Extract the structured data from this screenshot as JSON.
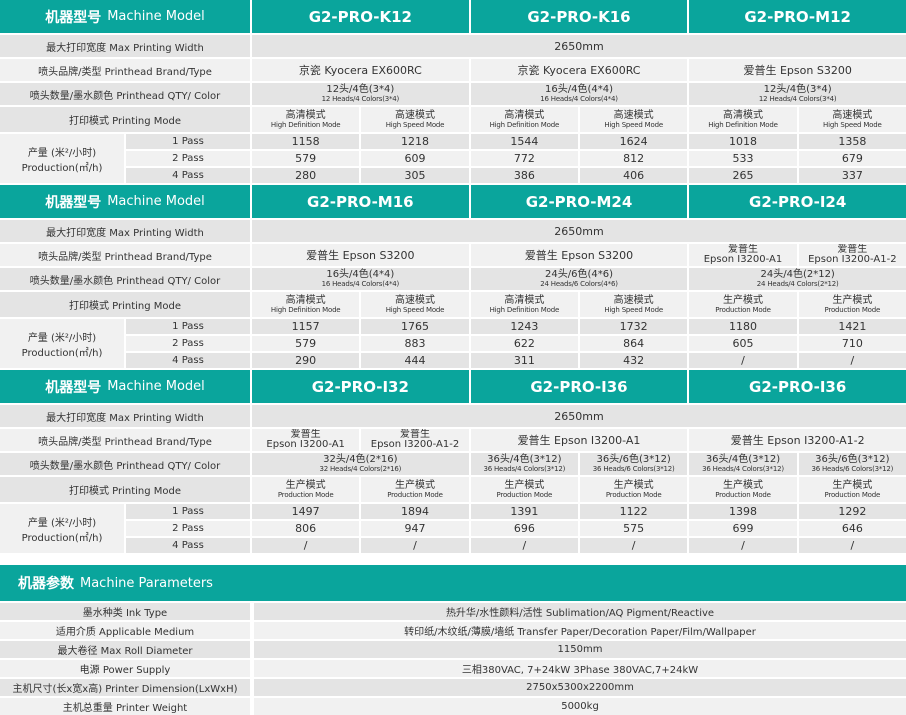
{
  "colors": {
    "accent": "#0aa59c",
    "row_dark": "#e4e4e4",
    "row_light": "#f1f1f1"
  },
  "labels": {
    "machine_model_zh": "机器型号",
    "machine_model_en": "Machine Model",
    "max_width": "最大打印宽度 Max Printing Width",
    "brand": "喷头品牌/类型 Printhead Brand/Type",
    "qty": "喷头数量/墨水颜色 Printhead QTY/ Color",
    "mode": "打印模式 Printing Mode",
    "production_zh": "产量 (米²/小时)",
    "production_en": "Production(㎡/h)",
    "passes": [
      "1  Pass",
      "2  Pass",
      "4  Pass"
    ]
  },
  "sections": [
    {
      "width": "2650mm",
      "models": [
        {
          "name": "G2-PRO-K12",
          "brand": [
            "京瓷 Kyocera EX600RC"
          ],
          "qty": [
            {
              "zh": "12头/4色(3*4)",
              "en": "12 Heads/4 Colors(3*4)"
            }
          ],
          "modes": [
            {
              "zh": "高清模式",
              "en": "High Definition Mode"
            },
            {
              "zh": "高速模式",
              "en": "High Speed Mode"
            }
          ],
          "values": [
            [
              "1158",
              "1218"
            ],
            [
              "579",
              "609"
            ],
            [
              "280",
              "305"
            ]
          ]
        },
        {
          "name": "G2-PRO-K16",
          "brand": [
            "京瓷 Kyocera EX600RC"
          ],
          "qty": [
            {
              "zh": "16头/4色(4*4)",
              "en": "16 Heads/4 Colors(4*4)"
            }
          ],
          "modes": [
            {
              "zh": "高清模式",
              "en": "High Definition Mode"
            },
            {
              "zh": "高速模式",
              "en": "High Speed Mode"
            }
          ],
          "values": [
            [
              "1544",
              "1624"
            ],
            [
              "772",
              "812"
            ],
            [
              "386",
              "406"
            ]
          ]
        },
        {
          "name": "G2-PRO-M12",
          "brand": [
            "爱普生 Epson S3200"
          ],
          "qty": [
            {
              "zh": "12头/4色(3*4)",
              "en": "12 Heads/4 Colors(3*4)"
            }
          ],
          "modes": [
            {
              "zh": "高清模式",
              "en": "High Definition Mode"
            },
            {
              "zh": "高速模式",
              "en": "High Speed Mode"
            }
          ],
          "values": [
            [
              "1018",
              "1358"
            ],
            [
              "533",
              "679"
            ],
            [
              "265",
              "337"
            ]
          ]
        }
      ]
    },
    {
      "width": "2650mm",
      "models": [
        {
          "name": "G2-PRO-M16",
          "brand": [
            "爱普生 Epson S3200"
          ],
          "qty": [
            {
              "zh": "16头/4色(4*4)",
              "en": "16 Heads/4 Colors(4*4)"
            }
          ],
          "modes": [
            {
              "zh": "高清模式",
              "en": "High Definition Mode"
            },
            {
              "zh": "高速模式",
              "en": "High Speed Mode"
            }
          ],
          "values": [
            [
              "1157",
              "1765"
            ],
            [
              "579",
              "883"
            ],
            [
              "290",
              "444"
            ]
          ]
        },
        {
          "name": "G2-PRO-M24",
          "brand": [
            "爱普生 Epson S3200"
          ],
          "qty": [
            {
              "zh": "24头/6色(4*6)",
              "en": "24 Heads/6 Colors(4*6)"
            }
          ],
          "modes": [
            {
              "zh": "高清模式",
              "en": "High Definition Mode"
            },
            {
              "zh": "高速模式",
              "en": "High Speed Mode"
            }
          ],
          "values": [
            [
              "1243",
              "1732"
            ],
            [
              "622",
              "864"
            ],
            [
              "311",
              "432"
            ]
          ]
        },
        {
          "name": "G2-PRO-I24",
          "brand": [
            "爱普生\nEpson I3200-A1",
            "爱普生\nEpson I3200-A1-2"
          ],
          "qty": [
            {
              "zh": "24头/4色(2*12)",
              "en": "24 Heads/4 Colors(2*12)"
            }
          ],
          "modes": [
            {
              "zh": "生产模式",
              "en": "Production Mode"
            },
            {
              "zh": "生产模式",
              "en": "Production Mode"
            }
          ],
          "values": [
            [
              "1180",
              "1421"
            ],
            [
              "605",
              "710"
            ],
            [
              "/",
              "/"
            ]
          ]
        }
      ]
    },
    {
      "width": "2650mm",
      "models": [
        {
          "name": "G2-PRO-I32",
          "brand": [
            "爱普生\nEpson I3200-A1",
            "爱普生\nEpson I3200-A1-2"
          ],
          "qty": [
            {
              "zh": "32头/4色(2*16)",
              "en": "32 Heads/4 Colors(2*16)"
            }
          ],
          "modes": [
            {
              "zh": "生产模式",
              "en": "Production Mode"
            },
            {
              "zh": "生产模式",
              "en": "Production Mode"
            }
          ],
          "values": [
            [
              "1497",
              "1894"
            ],
            [
              "806",
              "947"
            ],
            [
              "/",
              "/"
            ]
          ]
        },
        {
          "name": "G2-PRO-I36",
          "brand": [
            "爱普生 Epson I3200-A1"
          ],
          "qty": [
            {
              "zh": "36头/4色(3*12)",
              "en": "36 Heads/4 Colors(3*12)"
            },
            {
              "zh": "36头/6色(3*12)",
              "en": "36 Heads/6 Colors(3*12)"
            }
          ],
          "modes": [
            {
              "zh": "生产模式",
              "en": "Production Mode"
            },
            {
              "zh": "生产模式",
              "en": "Production Mode"
            }
          ],
          "values": [
            [
              "1391",
              "1122"
            ],
            [
              "696",
              "575"
            ],
            [
              "/",
              "/"
            ]
          ]
        },
        {
          "name": "G2-PRO-I36",
          "brand": [
            "爱普生 Epson I3200-A1-2"
          ],
          "qty": [
            {
              "zh": "36头/4色(3*12)",
              "en": "36 Heads/4 Colors(3*12)"
            },
            {
              "zh": "36头/6色(3*12)",
              "en": "36 Heads/6 Colors(3*12)"
            }
          ],
          "modes": [
            {
              "zh": "生产模式",
              "en": "Production Mode"
            },
            {
              "zh": "生产模式",
              "en": "Production Mode"
            }
          ],
          "values": [
            [
              "1398",
              "1292"
            ],
            [
              "699",
              "646"
            ],
            [
              "/",
              "/"
            ]
          ]
        }
      ]
    }
  ],
  "params": {
    "title_zh": "机器参数",
    "title_en": "Machine Parameters",
    "rows": [
      {
        "label": "墨水种类 Ink Type",
        "value": "热升华/水性颜料/活性 Sublimation/AQ Pigment/Reactive"
      },
      {
        "label": "适用介质 Applicable Medium",
        "value": "转印纸/木纹纸/薄膜/墙纸  Transfer Paper/Decoration Paper/Film/Wallpaper"
      },
      {
        "label": "最大卷径 Max Roll Diameter",
        "value": "1150mm"
      },
      {
        "label": "电源 Power Supply",
        "value": "三相380VAC, 7+24kW  3Phase 380VAC,7+24kW"
      },
      {
        "label": "主机尺寸(长x宽x高) Printer Dimension(LxWxH)",
        "value": "2750x5300x2200mm"
      },
      {
        "label": "主机总重量 Printer Weight",
        "value": "5000kg"
      }
    ]
  }
}
